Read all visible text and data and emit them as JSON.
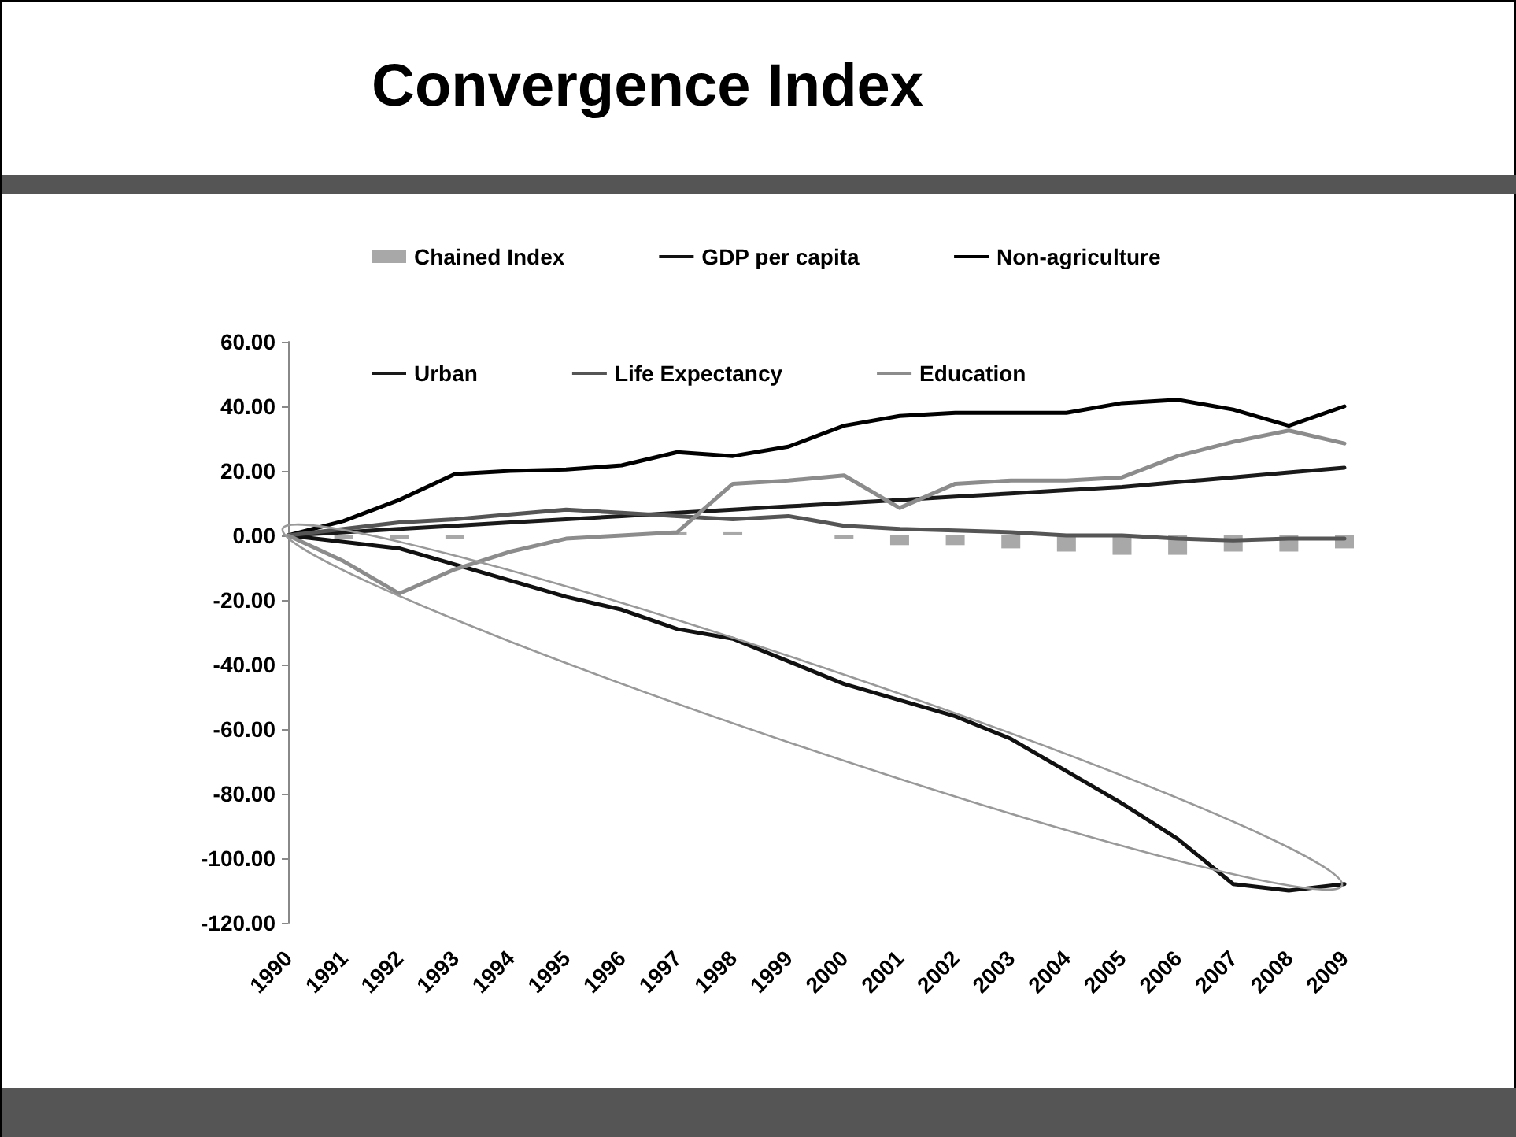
{
  "chart_data": {
    "type": "line",
    "title": "Convergence Index",
    "categories": [
      "1990",
      "1991",
      "1992",
      "1993",
      "1994",
      "1995",
      "1996",
      "1997",
      "1998",
      "1999",
      "2000",
      "2001",
      "2002",
      "2003",
      "2004",
      "2005",
      "2006",
      "2007",
      "2008",
      "2009"
    ],
    "series": [
      {
        "name": "Chained Index",
        "type": "bar",
        "color": "#a8a8a8",
        "values": [
          0,
          -1,
          -1,
          -1,
          0,
          null,
          null,
          1,
          1,
          0,
          -1,
          -3,
          -3,
          -4,
          -5,
          -6,
          -6,
          -5,
          -5,
          -4
        ]
      },
      {
        "name": "GDP per capita",
        "color": "#111111",
        "values": [
          0,
          -2,
          -4,
          -9,
          -14,
          -19,
          -23,
          -29,
          -32,
          -39,
          -46,
          -51,
          -56,
          -63,
          -73,
          -83,
          -94,
          -108,
          -110,
          -108
        ]
      },
      {
        "name": "Non-agriculture",
        "color": "#000000",
        "values": [
          0,
          4.5,
          11,
          19,
          20,
          20.4,
          21.7,
          25.8,
          24.6,
          27.5,
          34,
          37,
          38,
          38,
          38,
          41,
          42,
          39,
          34,
          40
        ]
      },
      {
        "name": "Urban",
        "color": "#1a1a1a",
        "values": [
          0,
          1,
          2,
          3,
          4,
          5,
          6,
          7,
          8,
          9,
          10,
          11,
          12,
          13,
          14,
          15,
          16.5,
          18,
          19.5,
          21
        ]
      },
      {
        "name": "Life Expectancy",
        "color": "#555555",
        "values": [
          0,
          2,
          4,
          5,
          6.5,
          8,
          7,
          6,
          5,
          6,
          3,
          2,
          1.5,
          1,
          0,
          0,
          -1,
          -1.5,
          -1,
          -1
        ]
      },
      {
        "name": "Education",
        "color": "#8c8c8c",
        "values": [
          0,
          -8,
          -18,
          -10.5,
          -5,
          -1,
          0,
          1,
          16,
          17,
          18.6,
          8.5,
          16,
          17,
          17,
          18,
          24.6,
          29,
          32.5,
          28.5
        ]
      }
    ],
    "ylim": [
      -120,
      60
    ],
    "yticks": [
      {
        "value": -120,
        "label": "-120.00"
      },
      {
        "value": -100,
        "label": "-100.00"
      },
      {
        "value": -80,
        "label": "-80.00"
      },
      {
        "value": -60,
        "label": "-60.00"
      },
      {
        "value": -40,
        "label": "-40.00"
      },
      {
        "value": -20,
        "label": "-20.00"
      },
      {
        "value": 0,
        "label": "0.00"
      },
      {
        "value": 20,
        "label": "20.00"
      },
      {
        "value": 40,
        "label": "40.00"
      },
      {
        "value": 60,
        "label": "60.00"
      }
    ],
    "grid": false,
    "legend": "top",
    "marker": "none",
    "line_style": "solid"
  }
}
